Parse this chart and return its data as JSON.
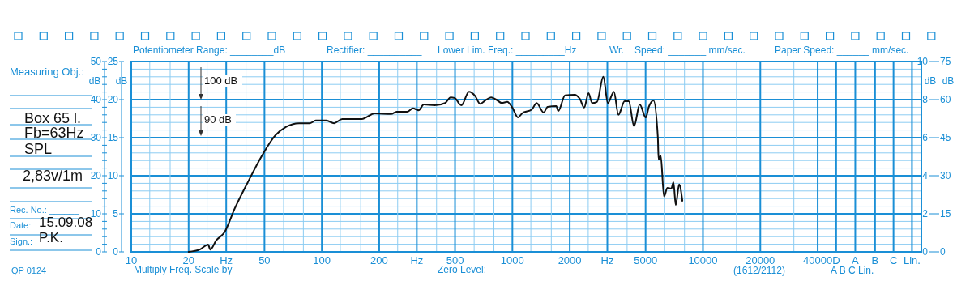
{
  "chart_data": {
    "type": "line",
    "xlabel": null,
    "ylabel": "dB",
    "y2label": "dB",
    "y3label": "dB",
    "log": "x",
    "grid": true,
    "marker": "none",
    "line_style": "solid",
    "xlim": [
      10,
      140000
    ],
    "xticks": [
      10,
      {
        "value": 12.5,
        "label": null
      },
      {
        "value": 16,
        "label": null
      },
      20,
      {
        "value": 25,
        "label": null
      },
      {
        "value": 31.5,
        "label": "Hz"
      },
      {
        "value": 40,
        "label": null
      },
      50,
      {
        "value": 63,
        "label": null
      },
      {
        "value": 80,
        "label": null
      },
      100,
      {
        "value": 125,
        "label": null
      },
      {
        "value": 160,
        "label": null
      },
      200,
      {
        "value": 250,
        "label": null
      },
      {
        "value": 315,
        "label": "Hz"
      },
      {
        "value": 400,
        "label": null
      },
      500,
      {
        "value": 630,
        "label": null
      },
      {
        "value": 800,
        "label": null
      },
      1000,
      {
        "value": 1250,
        "label": null
      },
      {
        "value": 1600,
        "label": null
      },
      2000,
      {
        "value": 2500,
        "label": null
      },
      {
        "value": 3150,
        "label": "Hz"
      },
      {
        "value": 4000,
        "label": null
      },
      5000,
      {
        "value": 6300,
        "label": null
      },
      {
        "value": 8000,
        "label": null
      },
      10000,
      {
        "value": 15000,
        "label": null
      },
      20000,
      {
        "value": 30000,
        "label": null
      },
      40000,
      {
        "value": 50000,
        "label": "D"
      },
      {
        "value": 63000,
        "label": "A"
      },
      {
        "value": 80000,
        "label": "B"
      },
      {
        "value": 100000,
        "label": "C"
      },
      {
        "value": 125000,
        "label": "Lin."
      }
    ],
    "ylim": [
      0,
      50
    ],
    "yticks": [
      0,
      {
        "value": 2,
        "label": null
      },
      {
        "value": 4,
        "label": null
      },
      {
        "value": 6,
        "label": null
      },
      {
        "value": 8,
        "label": null
      },
      10,
      {
        "value": 12,
        "label": null
      },
      {
        "value": 14,
        "label": null
      },
      {
        "value": 16,
        "label": null
      },
      {
        "value": 18,
        "label": null
      },
      20,
      {
        "value": 22,
        "label": null
      },
      {
        "value": 24,
        "label": null
      },
      {
        "value": 26,
        "label": null
      },
      {
        "value": 28,
        "label": null
      },
      30,
      {
        "value": 32,
        "label": null
      },
      {
        "value": 34,
        "label": null
      },
      {
        "value": 36,
        "label": null
      },
      {
        "value": 38,
        "label": null
      },
      40,
      {
        "value": 42,
        "label": null
      },
      {
        "value": 44,
        "label": null
      },
      {
        "value": 46,
        "label": null
      },
      {
        "value": 48,
        "label": null
      },
      50
    ],
    "y2lim": [
      0,
      25
    ],
    "y2ticks": [
      0,
      5,
      10,
      15,
      20,
      25
    ],
    "y3lim": [
      0,
      10
    ],
    "y3ticks": [
      0,
      2,
      4,
      6,
      8,
      10
    ],
    "series": [
      {
        "color": "#111111",
        "x": [
          20,
          22.9,
          25.3,
          26,
          27.9,
          30.8,
          35,
          41.3,
          48.3,
          57,
          64.7,
          76,
          86.6,
          93,
          105.6,
          116,
          128,
          162,
          190,
          231,
          247,
          280,
          301,
          322,
          343,
          391,
          444,
          474,
          500,
          526,
          540,
          592,
          637,
          677,
          722,
          773,
          823,
          880,
          940,
          1000,
          1070,
          1125,
          1265,
          1340,
          1460,
          1530,
          1700,
          1740,
          1890,
          2120,
          2260,
          2380,
          2510,
          2620,
          2780,
          3000,
          3170,
          3410,
          3600,
          3880,
          4080,
          4350,
          4660,
          5010,
          5200,
          5500,
          5800,
          5850,
          6000,
          6250,
          6500,
          6820,
          7000,
          7200,
          7500,
          7800
        ],
        "values": [
          0,
          0.6,
          1.9,
          0.6,
          3,
          5.1,
          11.5,
          18.7,
          25.1,
          30.6,
          32.8,
          33.8,
          33.8,
          34.5,
          34.5,
          33.8,
          34.9,
          34.9,
          36.4,
          36.2,
          36.8,
          36.8,
          37.7,
          37.2,
          38.7,
          38.5,
          39.1,
          40.6,
          40.4,
          38.9,
          38.5,
          42.1,
          41,
          38.9,
          39.8,
          40.6,
          40,
          39.1,
          39.4,
          37.9,
          35.3,
          36.4,
          37.4,
          39.1,
          36.6,
          38.1,
          38.3,
          37,
          41.1,
          41.3,
          40.2,
          37.9,
          41.7,
          39.1,
          39.4,
          46,
          39.1,
          42.1,
          36,
          39.6,
          39.6,
          33,
          38.7,
          35.3,
          38.1,
          39.8,
          30,
          24.3,
          25.3,
          14.5,
          16.8,
          16.6,
          18.3,
          12.3,
          17.7,
          13.4
        ]
      }
    ],
    "annotations": [
      "Measuring Obj.:",
      "Box 65 l.",
      "Fb=63Hz",
      "SPL",
      "2,83v/1m",
      "Rec.  No.: ______",
      "Date:",
      "15.09.08",
      "Sign.:",
      "P.K.",
      "QP 0124",
      "Potentiometer Range: ________dB",
      "Rectifier: __________",
      "Lower Lim. Freq.: _________Hz",
      "Wr.",
      "Speed: _______ mm/sec.",
      "Paper Speed: ______ mm/sec.",
      "Multiply Freq. Scale by ______________________",
      "Zero Level: ______________________________",
      "(1612/2112)",
      "A      B      C Lin.",
      "100 dB",
      "90 dB",
      "0",
      "15",
      "30",
      "45",
      "60",
      "75",
      "dB"
    ]
  }
}
